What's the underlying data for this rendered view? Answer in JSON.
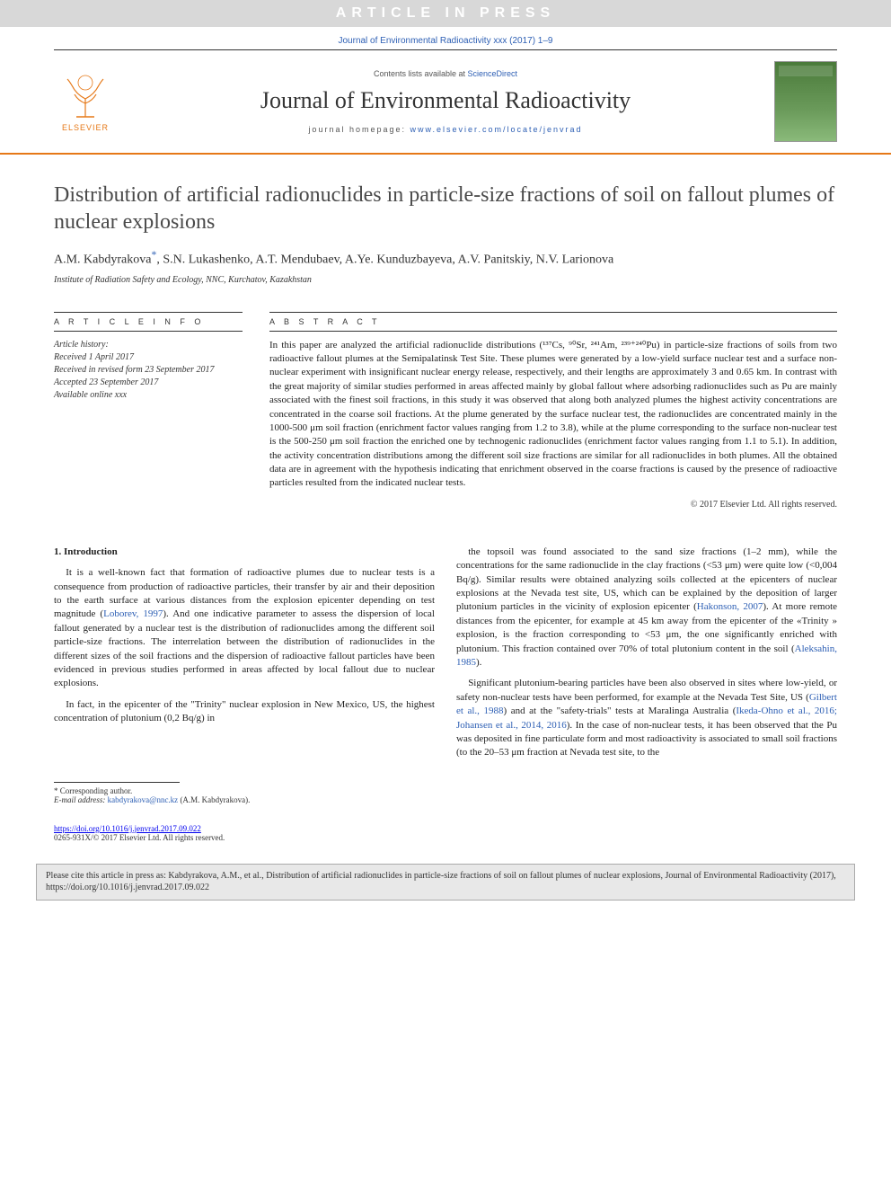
{
  "banner": {
    "text": "ARTICLE IN PRESS"
  },
  "journal_ref": "Journal of Environmental Radioactivity xxx (2017) 1–9",
  "header": {
    "publisher": "ELSEVIER",
    "contents_prefix": "Contents lists available at ",
    "contents_link": "ScienceDirect",
    "journal_name": "Journal of Environmental Radioactivity",
    "homepage_prefix": "journal homepage: ",
    "homepage_url": "www.elsevier.com/locate/jenvrad",
    "accent_color": "#e67817",
    "link_color": "#2d5fb4",
    "cover_title1": "JOURNAL OF",
    "cover_title2": "ENVIRONMENTAL",
    "cover_title3": "RADIOACTIVITY"
  },
  "article": {
    "title": "Distribution of artificial radionuclides in particle-size fractions of soil on fallout plumes of nuclear explosions",
    "authors_html": "A.M. Kabdyrakova<sup class=\"corr\">*</sup>, S.N. Lukashenko, A.T. Mendubaev, A.Ye. Kunduzbayeva, A.V. Panitskiy, N.V. Larionova",
    "affiliation": "Institute of Radiation Safety and Ecology, NNC, Kurchatov, Kazakhstan"
  },
  "article_info": {
    "label": "A R T I C L E   I N F O",
    "history_label": "Article history:",
    "received": "Received 1 April 2017",
    "revised": "Received in revised form 23 September 2017",
    "accepted": "Accepted 23 September 2017",
    "online": "Available online xxx"
  },
  "abstract": {
    "label": "A B S T R A C T",
    "text": "In this paper are analyzed the artificial radionuclide distributions (¹³⁷Cs, ⁹⁰Sr, ²⁴¹Am, ²³⁹⁺²⁴⁰Pu) in particle-size fractions of soils from two radioactive fallout plumes at the Semipalatinsk Test Site. These plumes were generated by a low-yield surface nuclear test and a surface non-nuclear experiment with insignificant nuclear energy release, respectively, and their lengths are approximately 3 and 0.65 km. In contrast with the great majority of similar studies performed in areas affected mainly by global fallout where adsorbing radionuclides such as Pu are mainly associated with the finest soil fractions, in this study it was observed that along both analyzed plumes the highest activity concentrations are concentrated in the coarse soil fractions. At the plume generated by the surface nuclear test, the radionuclides are concentrated mainly in the 1000-500 μm soil fraction (enrichment factor values ranging from 1.2 to 3.8), while at the plume corresponding to the surface non-nuclear test is the 500-250 μm soil fraction the enriched one by technogenic radionuclides (enrichment factor values ranging from 1.1 to 5.1). In addition, the activity concentration distributions among the different soil size fractions are similar for all radionuclides in both plumes. All the obtained data are in agreement with the hypothesis indicating that enrichment observed in the coarse fractions is caused by the presence of radioactive particles resulted from the indicated nuclear tests.",
    "copyright": "© 2017 Elsevier Ltd. All rights reserved."
  },
  "body": {
    "section_number": "1.",
    "section_title": "Introduction",
    "col1": [
      "It is a well-known fact that formation of radioactive plumes due to nuclear tests is a consequence from production of radioactive particles, their transfer by air and their deposition to the earth surface at various distances from the explosion epicenter depending on test magnitude (<span class=\"ref\">Loborev, 1997</span>). And one indicative parameter to assess the dispersion of local fallout generated by a nuclear test is the distribution of radionuclides among the different soil particle-size fractions. The interrelation between the distribution of radionuclides in the different sizes of the soil fractions and the dispersion of radioactive fallout particles have been evidenced in previous studies performed in areas affected by local fallout due to nuclear explosions.",
      "In fact, in the epicenter of the \"Trinity\" nuclear explosion in New Mexico, US, the highest concentration of plutonium (0,2 Bq/g) in"
    ],
    "col2": [
      "the topsoil was found associated to the sand size fractions (1–2 mm), while the concentrations for the same radionuclide in the clay fractions (<53 μm) were quite low (<0,004 Bq/g). Similar results were obtained analyzing soils collected at the epicenters of nuclear explosions at the Nevada test site, US, which can be explained by the deposition of larger plutonium particles in the vicinity of explosion epicenter (<span class=\"ref\">Hakonson, 2007</span>). At more remote distances from the epicenter, for example at 45 km away from the epicenter of the «Trinity » explosion, is the fraction corresponding to <53 μm, the one significantly enriched with plutonium. This fraction contained over 70% of total plutonium content in the soil (<span class=\"ref\">Aleksahin, 1985</span>).",
      "Significant plutonium-bearing particles have been also observed in sites where low-yield, or safety non-nuclear tests have been performed, for example at the Nevada Test Site, US (<span class=\"ref\">Gilbert et al., 1988</span>) and at the \"safety-trials\" tests at Maralinga Australia (<span class=\"ref\">Ikeda-Ohno et al., 2016; Johansen et al., 2014, 2016</span>). In the case of non-nuclear tests, it has been observed that the Pu was deposited in fine particulate form and most radioactivity is associated to small soil fractions (to the 20–53 μm fraction at Nevada test site, to the"
    ]
  },
  "footer": {
    "corr_label": "* Corresponding author.",
    "email_label": "E-mail address:",
    "email": "kabdyrakova@nnc.kz",
    "email_name": "(A.M. Kabdyrakova).",
    "doi": "https://doi.org/10.1016/j.jenvrad.2017.09.022",
    "issn": "0265-931X/© 2017 Elsevier Ltd. All rights reserved."
  },
  "cite_box": "Please cite this article in press as: Kabdyrakova, A.M., et al., Distribution of artificial radionuclides in particle-size fractions of soil on fallout plumes of nuclear explosions, Journal of Environmental Radioactivity (2017), https://doi.org/10.1016/j.jenvrad.2017.09.022"
}
